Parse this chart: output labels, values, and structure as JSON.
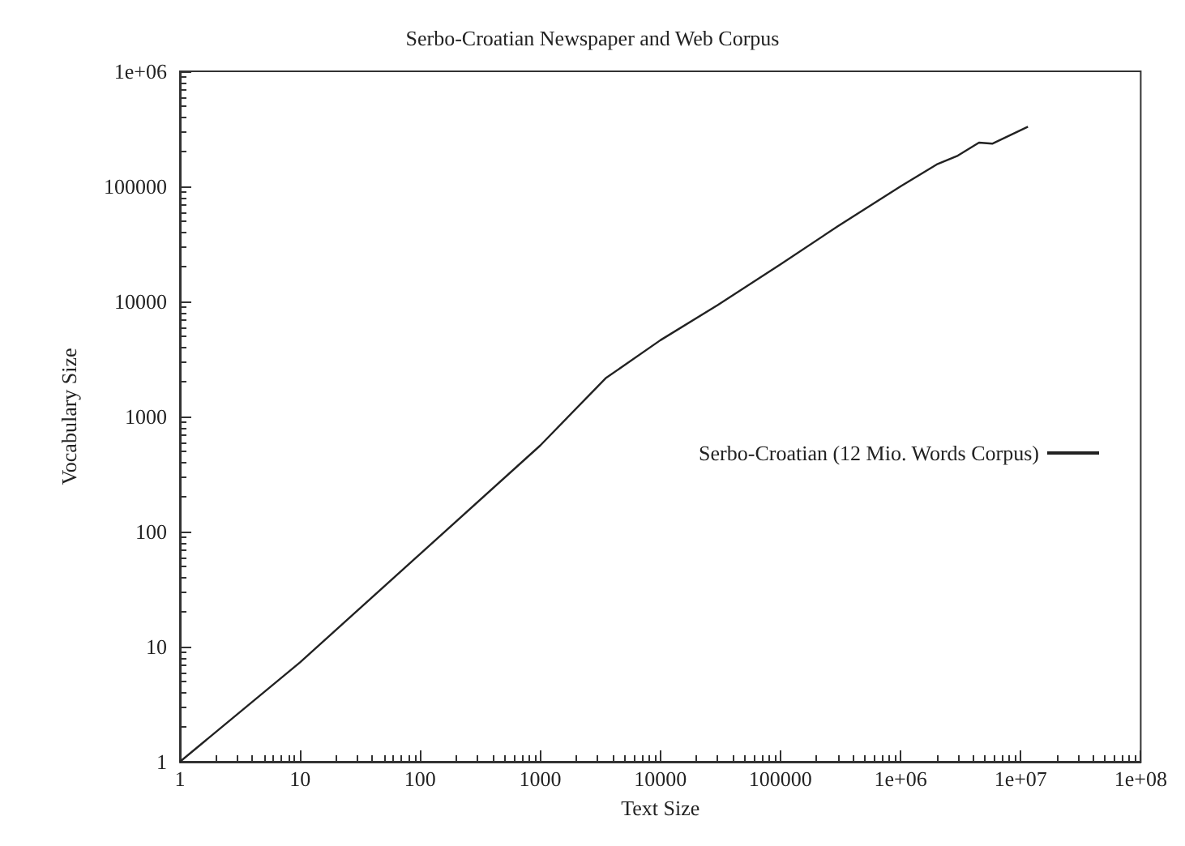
{
  "chart_data": {
    "type": "line",
    "title": "Serbo-Croatian Newspaper and Web Corpus",
    "xlabel": "Text Size",
    "ylabel": "Vocabulary Size",
    "log": "xy",
    "grid": false,
    "legend": "right",
    "marker": "none",
    "line_style": "solid",
    "xlim": [
      1,
      100000000
    ],
    "ylim": [
      1,
      1000000
    ],
    "xticks": [
      1,
      10,
      100,
      1000,
      10000,
      100000,
      {
        "value": 1000000,
        "label": "1e+06"
      },
      {
        "value": 10000000,
        "label": "1e+07"
      },
      {
        "value": 100000000,
        "label": "1e+08"
      }
    ],
    "yticks": [
      1,
      10,
      100,
      1000,
      10000,
      100000,
      {
        "value": 1000000,
        "label": "1e+06"
      }
    ],
    "series": [
      {
        "name": "Serbo-Croatian (12 Mio. Words Corpus)",
        "color": "#222222",
        "x": [
          1,
          10,
          100,
          1000,
          3500,
          10000,
          30000,
          100000,
          300000,
          1000000,
          2000000,
          3000000,
          4500000,
          5800000,
          11500000
        ],
        "values": [
          1,
          7.3,
          64,
          560,
          2150,
          4600,
          9300,
          21000,
          45000,
          100000,
          155000,
          185000,
          240000,
          235000,
          330000
        ]
      }
    ]
  }
}
